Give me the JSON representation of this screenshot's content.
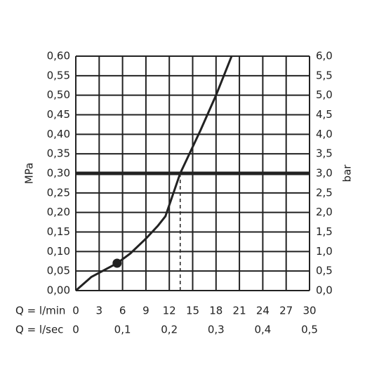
{
  "chart_data": {
    "type": "line",
    "xlabel": "Q = l/min",
    "x2label": "Q = l/sec",
    "ylabel": "MPa",
    "y2label": "bar",
    "x": [
      0,
      2,
      5.3,
      7,
      9,
      10.5,
      11.5,
      13.4,
      16,
      18,
      20
    ],
    "series": [
      {
        "color": "#222222",
        "values": [
          0,
          0.035,
          0.07,
          0.095,
          0.133,
          0.165,
          0.19,
          0.3,
          0.41,
          0.5,
          0.6
        ]
      }
    ],
    "marker": {
      "x": 5.3,
      "y": 0.07
    },
    "reference_line": 0.3,
    "ref_x": 13.4,
    "xlim": [
      0,
      30
    ],
    "xticks": [
      0,
      3,
      6,
      9,
      12,
      15,
      18,
      21,
      24,
      27,
      30
    ],
    "x2lim": [
      0,
      0.5
    ],
    "x2ticks": [
      0,
      {
        "value": 0.1,
        "label": "0,1"
      },
      {
        "value": 0.2,
        "label": "0,2"
      },
      {
        "value": 0.3,
        "label": "0,3"
      },
      {
        "value": 0.4,
        "label": "0,4"
      },
      {
        "value": 0.5,
        "label": "0,5"
      }
    ],
    "ylim": [
      0,
      0.6
    ],
    "yticks": [
      {
        "value": 0,
        "label": "0,00"
      },
      {
        "value": 0.05,
        "label": "0,05"
      },
      {
        "value": 0.1,
        "label": "0,10"
      },
      {
        "value": 0.15,
        "label": "0,15"
      },
      {
        "value": 0.2,
        "label": "0,20"
      },
      {
        "value": 0.25,
        "label": "0,25"
      },
      {
        "value": 0.3,
        "label": "0,30"
      },
      {
        "value": 0.35,
        "label": "0,35"
      },
      {
        "value": 0.4,
        "label": "0,40"
      },
      {
        "value": 0.45,
        "label": "0,45"
      },
      {
        "value": 0.5,
        "label": "0,50"
      },
      {
        "value": 0.55,
        "label": "0,55"
      },
      {
        "value": 0.6,
        "label": "0,60"
      }
    ],
    "y2lim": [
      0,
      6
    ],
    "y2ticks": [
      {
        "value": 0,
        "label": "0,0"
      },
      {
        "value": 0.5,
        "label": "0,5"
      },
      {
        "value": 1,
        "label": "1,0"
      },
      {
        "value": 1.5,
        "label": "1,5"
      },
      {
        "value": 2,
        "label": "2,0"
      },
      {
        "value": 2.5,
        "label": "2,5"
      },
      {
        "value": 3,
        "label": "3,0"
      },
      {
        "value": 3.5,
        "label": "3,5"
      },
      {
        "value": 4,
        "label": "4,0"
      },
      {
        "value": 4.5,
        "label": "4,5"
      },
      {
        "value": 5,
        "label": "5,0"
      },
      {
        "value": 5.5,
        "label": "5,5"
      },
      {
        "value": 6,
        "label": "6,0"
      }
    ],
    "grid": true
  }
}
